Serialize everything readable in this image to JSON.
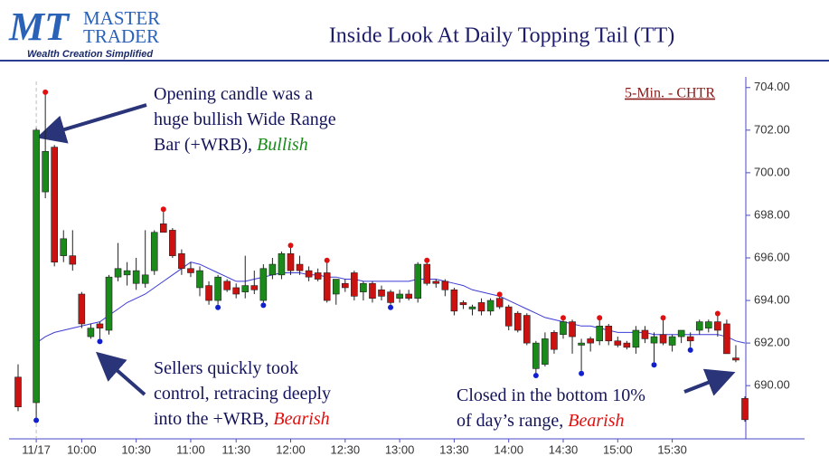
{
  "header": {
    "logo_mark": "MT",
    "logo_line1": "MASTER",
    "logo_line2": "TRADER",
    "tagline": "Wealth Creation Simplified"
  },
  "chart_data": {
    "type": "candlestick",
    "title": "Inside Look At Daily Topping Tail (TT)",
    "subtitle": "5-Min. - CHTR",
    "categories": [
      null,
      null,
      "11/17",
      null,
      null,
      null,
      null,
      "10:00",
      null,
      null,
      null,
      null,
      null,
      "10:30",
      null,
      null,
      null,
      null,
      null,
      "11:00",
      null,
      null,
      null,
      null,
      "11:30",
      null,
      null,
      null,
      null,
      null,
      "12:00",
      null,
      null,
      null,
      null,
      null,
      "12:30",
      null,
      null,
      null,
      null,
      null,
      "13:00",
      null,
      null,
      null,
      null,
      null,
      "13:30",
      null,
      null,
      null,
      null,
      null,
      "14:00",
      null,
      null,
      null,
      null,
      null,
      "14:30",
      null,
      null,
      null,
      null,
      null,
      "15:00",
      null,
      null,
      null,
      null,
      null,
      "15:30",
      null,
      null,
      null,
      null,
      null,
      null,
      null,
      null
    ],
    "open": [
      690.4,
      null,
      689.2,
      699.1,
      701.2,
      696.1,
      696.1,
      694.3,
      692.3,
      692.9,
      692.6,
      695.1,
      695.2,
      694.8,
      694.8,
      695.4,
      697.6,
      697.3,
      696.2,
      695.5,
      694.6,
      694.7,
      694.0,
      694.9,
      694.6,
      694.4,
      694.7,
      694.0,
      695.2,
      695.2,
      696.2,
      695.7,
      695.4,
      695.3,
      695.3,
      694.3,
      694.8,
      695.3,
      694.4,
      694.8,
      694.5,
      694.4,
      694.1,
      694.3,
      694.1,
      695.7,
      694.9,
      694.9,
      694.5,
      693.9,
      693.6,
      693.9,
      693.5,
      694.1,
      693.7,
      693.4,
      693.3,
      690.8,
      691.0,
      692.5,
      692.4,
      693.0,
      691.9,
      692.2,
      692.1,
      692.8,
      692.1,
      692.0,
      691.8,
      692.6,
      692.0,
      692.4,
      691.9,
      692.3,
      692.3,
      692.6,
      692.7,
      693.0,
      692.9,
      691.3,
      689.4
    ],
    "high": [
      691.0,
      null,
      702.1,
      703.7,
      701.3,
      697.3,
      697.3,
      694.4,
      692.9,
      693.0,
      695.2,
      696.7,
      695.8,
      696.0,
      697.3,
      697.3,
      698.2,
      697.4,
      696.4,
      695.8,
      695.6,
      694.9,
      695.2,
      695.0,
      694.8,
      696.1,
      695.4,
      695.7,
      696.0,
      696.3,
      696.5,
      696.1,
      695.6,
      695.5,
      695.8,
      695.0,
      695.0,
      695.4,
      694.9,
      694.9,
      694.7,
      694.5,
      694.5,
      694.5,
      695.8,
      695.8,
      695.0,
      695.0,
      694.6,
      694.0,
      693.8,
      694.1,
      694.1,
      694.2,
      693.8,
      693.5,
      693.4,
      692.1,
      692.5,
      692.6,
      693.1,
      693.1,
      692.2,
      692.3,
      693.1,
      692.9,
      692.3,
      692.1,
      692.8,
      692.8,
      692.5,
      693.1,
      692.4,
      692.6,
      692.5,
      693.1,
      693.1,
      693.3,
      693.1,
      691.9,
      689.5
    ],
    "low": [
      688.8,
      null,
      688.5,
      698.8,
      695.6,
      695.8,
      695.4,
      692.7,
      692.2,
      692.2,
      692.4,
      694.9,
      694.7,
      694.5,
      694.6,
      695.2,
      697.2,
      696.0,
      695.2,
      695.1,
      694.2,
      693.8,
      693.8,
      694.4,
      694.1,
      694.1,
      694.3,
      693.9,
      695.0,
      695.0,
      695.2,
      695.2,
      694.9,
      694.9,
      693.9,
      693.8,
      694.4,
      694.0,
      694.0,
      693.9,
      694.0,
      693.8,
      693.9,
      694.0,
      693.9,
      694.7,
      694.6,
      694.2,
      693.3,
      693.6,
      693.3,
      693.3,
      693.3,
      693.6,
      692.6,
      692.5,
      691.9,
      690.6,
      690.9,
      691.5,
      692.2,
      691.5,
      690.7,
      691.6,
      691.9,
      691.9,
      691.8,
      691.7,
      691.5,
      692.0,
      691.1,
      691.9,
      691.6,
      692.0,
      691.8,
      692.4,
      692.5,
      692.3,
      691.5,
      691.1,
      688.3
    ],
    "close": [
      689.0,
      null,
      702.0,
      701.0,
      695.8,
      696.9,
      695.7,
      692.9,
      692.7,
      692.7,
      695.1,
      695.5,
      695.4,
      695.4,
      695.2,
      697.2,
      697.2,
      696.1,
      695.5,
      695.3,
      695.4,
      694.0,
      695.1,
      694.5,
      694.3,
      694.7,
      694.5,
      695.5,
      695.7,
      696.2,
      695.4,
      695.4,
      695.1,
      695.0,
      694.0,
      695.0,
      694.6,
      694.2,
      694.8,
      694.1,
      694.2,
      693.9,
      694.3,
      694.1,
      695.7,
      694.8,
      694.8,
      694.5,
      693.5,
      693.8,
      693.7,
      693.5,
      694.0,
      693.7,
      692.8,
      692.6,
      692.0,
      692.0,
      692.2,
      691.7,
      693.0,
      692.3,
      692.0,
      692.0,
      692.8,
      692.1,
      691.9,
      691.8,
      692.6,
      692.2,
      692.3,
      692.0,
      692.3,
      692.6,
      692.1,
      693.0,
      693.0,
      692.6,
      691.5,
      691.2,
      688.4
    ],
    "moving_average": {
      "color": "#3b3bd6",
      "values": [
        691.2,
        null,
        692.0,
        692.3,
        692.5,
        692.6,
        692.7,
        692.8,
        692.9,
        693.0,
        693.3,
        693.6,
        693.9,
        694.1,
        694.3,
        694.6,
        694.9,
        695.2,
        695.5,
        695.8,
        695.7,
        695.5,
        695.3,
        695.1,
        694.9,
        694.9,
        695.0,
        695.1,
        695.2,
        695.3,
        695.3,
        695.3,
        695.2,
        695.2,
        695.1,
        695.1,
        695.0,
        695.0,
        694.9,
        694.9,
        694.9,
        694.9,
        694.9,
        694.9,
        695.0,
        695.0,
        695.0,
        694.9,
        694.8,
        694.7,
        694.5,
        694.4,
        694.3,
        694.2,
        694.0,
        693.8,
        693.6,
        693.4,
        693.2,
        693.1,
        693.0,
        692.9,
        692.8,
        692.8,
        692.7,
        692.6,
        692.5,
        692.5,
        692.5,
        692.5,
        692.4,
        692.4,
        692.4,
        692.4,
        692.4,
        692.4,
        692.4,
        692.4,
        692.3,
        692.1,
        692.0
      ]
    },
    "up_color": "#1a8a1a",
    "down_color": "#cc1111",
    "high_markers": [
      3,
      16,
      30,
      34,
      45,
      53,
      60,
      64,
      71,
      77
    ],
    "high_marker_color": "#e01010",
    "low_markers": [
      2,
      9,
      22,
      27,
      41,
      57,
      62,
      70,
      74
    ],
    "low_marker_color": "#1020d0",
    "ylim": [
      687.5,
      704.5
    ],
    "yticks": [
      {
        "value": 690,
        "label": "690.00"
      },
      {
        "value": 692,
        "label": "692.00"
      },
      {
        "value": 694,
        "label": "694.00"
      },
      {
        "value": 696,
        "label": "696.00"
      },
      {
        "value": 698,
        "label": "698.00"
      },
      {
        "value": 700,
        "label": "700.00"
      },
      {
        "value": 702,
        "label": "702.00"
      },
      {
        "value": 704,
        "label": "704.00"
      }
    ],
    "yaxis_side": "right",
    "annotations": [
      {
        "lines": [
          "Opening candle was a",
          "huge bullish Wide Range",
          "Bar (+WRB),"
        ],
        "emphasis": "Bullish",
        "emphasis_color": "#1a8a1a"
      },
      {
        "lines": [
          "Sellers quickly took",
          "control, retracing deeply",
          "into the +WRB,"
        ],
        "emphasis": "Bearish",
        "emphasis_color": "#e01010"
      },
      {
        "lines": [
          "Closed in the bottom 10%",
          "of day’s range,"
        ],
        "emphasis": "Bearish",
        "emphasis_color": "#e01010"
      }
    ]
  }
}
